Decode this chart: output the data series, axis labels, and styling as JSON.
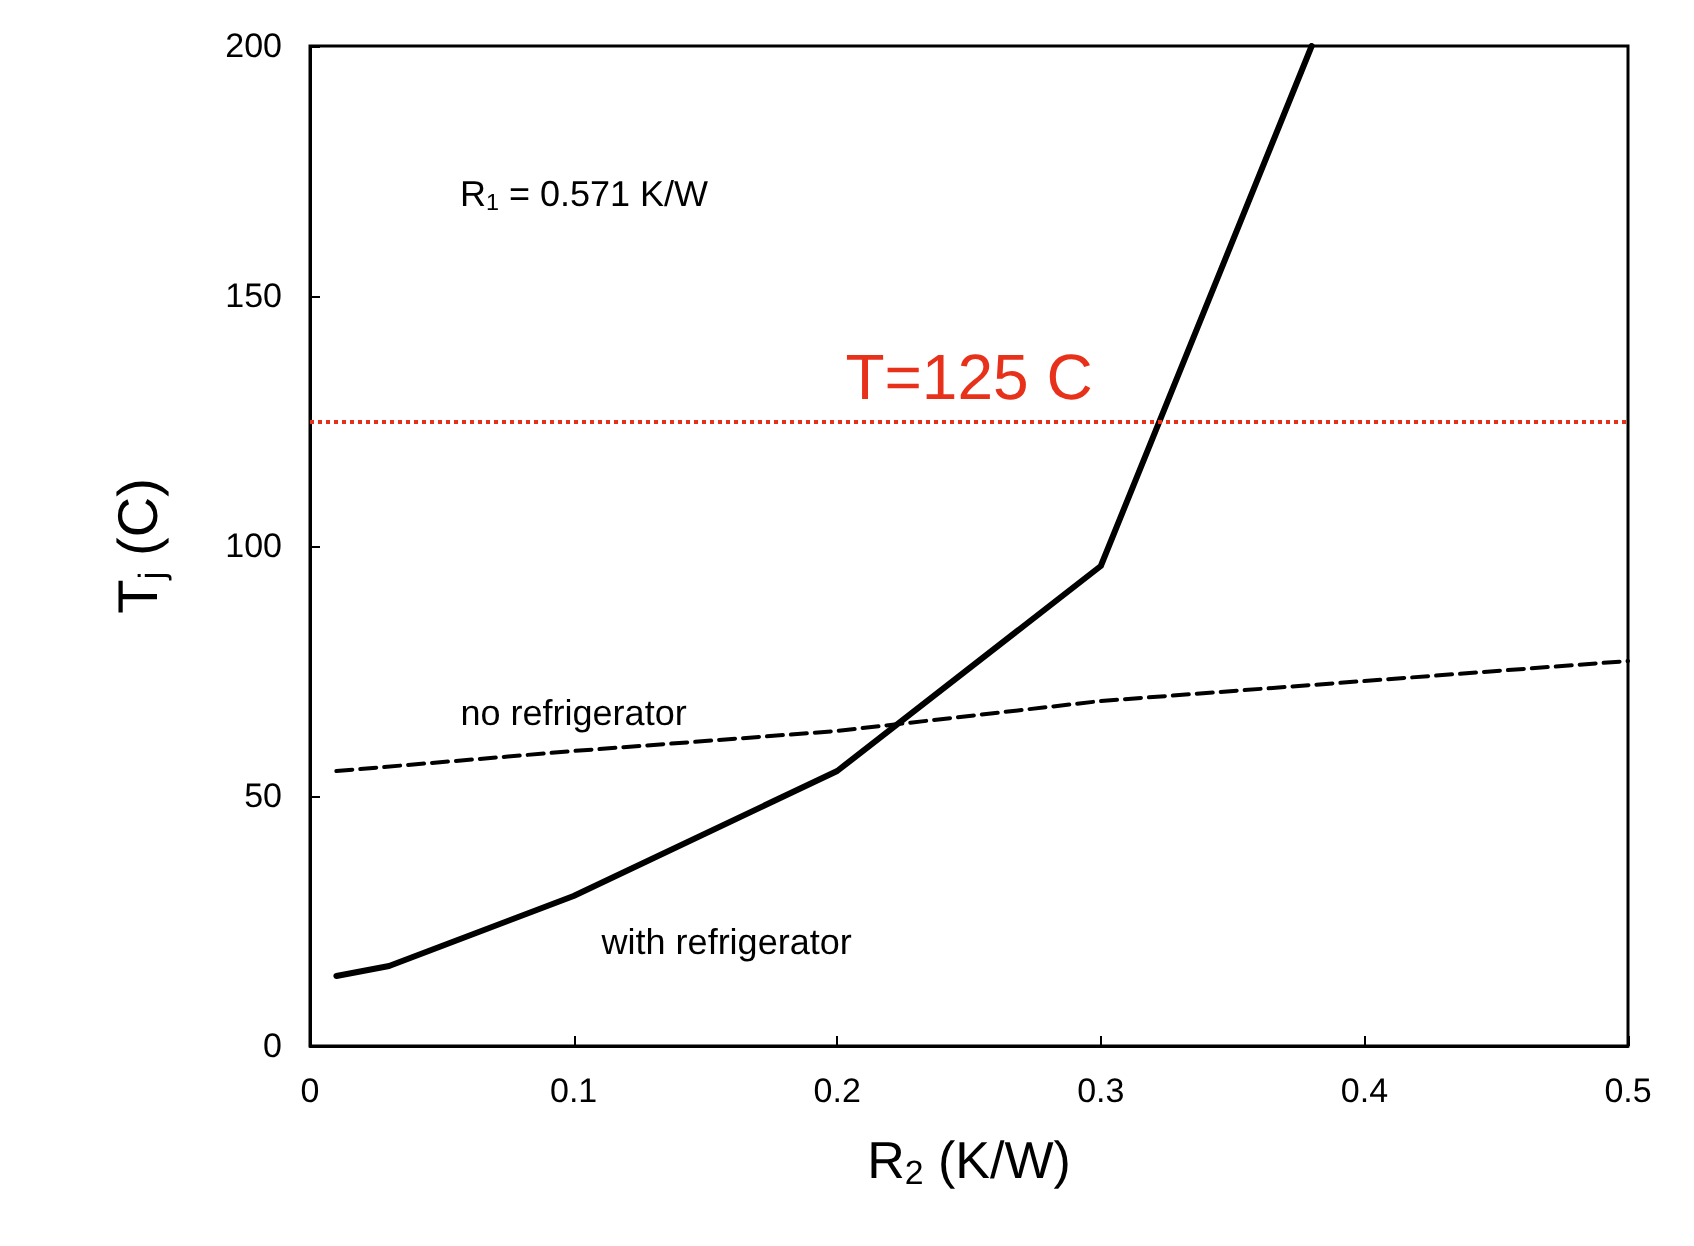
{
  "chart_data": {
    "type": "line",
    "xlabel": "R$_{2}$ (K/W)",
    "ylabel": "T$_{j}$ (C)",
    "xlim": [
      0,
      0.5
    ],
    "xticks": [
      0,
      0.1,
      0.2,
      0.3,
      0.4,
      0.5
    ],
    "ylim": [
      0,
      200
    ],
    "yticks": [
      0,
      50,
      100,
      150,
      200
    ],
    "grid": false,
    "legend": false,
    "marker": "none",
    "series": [
      {
        "name": "no refrigerator",
        "color": "#000000",
        "line_style": "dashed",
        "x": [
          0.01,
          0.1,
          0.2,
          0.3,
          0.4,
          0.5
        ],
        "values": [
          55,
          59,
          63,
          69,
          73,
          77
        ]
      },
      {
        "name": "with refrigerator",
        "color": "#000000",
        "line_style": "solid",
        "x": [
          0.01,
          0.03,
          0.05,
          0.1,
          0.2,
          0.3,
          0.38
        ],
        "values": [
          14,
          16,
          20,
          30,
          55,
          96,
          200
        ]
      }
    ],
    "ref_lines": [
      {
        "axis": "y",
        "value": 125,
        "label": "T=125 C",
        "color": "#e8311a",
        "line_style": "dotted"
      }
    ],
    "annotations": [
      "R$_{1}$ = 0.571 K/W"
    ]
  }
}
